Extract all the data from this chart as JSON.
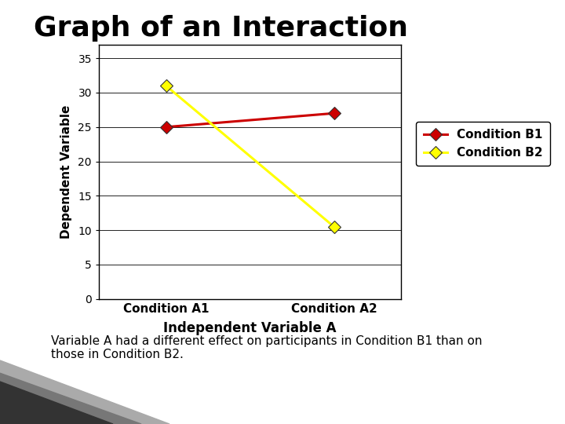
{
  "title": "Graph of an Interaction",
  "title_fontsize": 26,
  "title_fontweight": "bold",
  "xlabel": "Independent Variable A",
  "xlabel_fontsize": 12,
  "xlabel_fontweight": "bold",
  "ylabel": "Dependent Variable",
  "ylabel_fontsize": 11,
  "ylabel_fontweight": "bold",
  "xtick_labels": [
    "Condition A1",
    "Condition A2"
  ],
  "yticks": [
    0,
    5,
    10,
    15,
    20,
    25,
    30,
    35
  ],
  "ylim": [
    0,
    37
  ],
  "xlim": [
    -0.4,
    1.4
  ],
  "condition_b1": [
    25,
    27
  ],
  "condition_b2": [
    31,
    10.5
  ],
  "color_b1": "#cc0000",
  "color_b2": "#ffff00",
  "legend_b1": "Condition B1",
  "legend_b2": "Condition B2",
  "marker": "D",
  "markersize": 8,
  "linewidth": 2.2,
  "bg_color": "#ffffff",
  "subtitle_text": "Variable A had a different effect on participants in Condition B1 than on\nthose in Condition B2.",
  "subtitle_fontsize": 11,
  "corner_color": "#888888"
}
